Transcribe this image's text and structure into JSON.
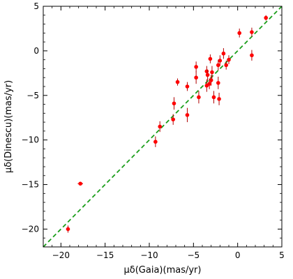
{
  "chart_data": {
    "type": "scatter",
    "title": "",
    "xlabel": "μδ(Gaia)(mas/yr)",
    "ylabel": "μδ(Dinescu)(mas/yr)",
    "xlim": [
      -22,
      5
    ],
    "ylim": [
      -22,
      5
    ],
    "xticks": [
      -20,
      -15,
      -10,
      -5,
      0,
      5
    ],
    "yticks": [
      -20,
      -15,
      -10,
      -5,
      0,
      5
    ],
    "xtick_labels": [
      "−20",
      "−15",
      "−10",
      "−5",
      "0",
      "5"
    ],
    "ytick_labels": [
      "−20",
      "−15",
      "−10",
      "−5",
      "0",
      "5"
    ],
    "grid": false,
    "marker_color": "#ff0000",
    "errorbar_color": "#b00000",
    "reference_line": {
      "style": "dashed",
      "color": "#1a9e1a",
      "from": [
        -22,
        -22
      ],
      "to": [
        5,
        5
      ]
    },
    "points": [
      {
        "x": 3.2,
        "y": 3.7,
        "xerr": 0.2,
        "yerr": 0.3
      },
      {
        "x": 1.6,
        "y": 2.1,
        "xerr": 0.2,
        "yerr": 0.5
      },
      {
        "x": 0.2,
        "y": 2.0,
        "xerr": 0.2,
        "yerr": 0.5
      },
      {
        "x": 1.6,
        "y": -0.5,
        "xerr": 0.2,
        "yerr": 0.6
      },
      {
        "x": -1.6,
        "y": -0.3,
        "xerr": 0.2,
        "yerr": 0.6
      },
      {
        "x": -1.3,
        "y": -1.6,
        "xerr": 0.2,
        "yerr": 0.5
      },
      {
        "x": -1.0,
        "y": -1.0,
        "xerr": 0.2,
        "yerr": 0.5
      },
      {
        "x": -2.0,
        "y": -1.1,
        "xerr": 0.2,
        "yerr": 0.6
      },
      {
        "x": -2.2,
        "y": -1.6,
        "xerr": 0.2,
        "yerr": 0.6
      },
      {
        "x": -3.1,
        "y": -0.9,
        "xerr": 0.2,
        "yerr": 0.5
      },
      {
        "x": -2.9,
        "y": -2.4,
        "xerr": 0.2,
        "yerr": 0.7
      },
      {
        "x": -3.5,
        "y": -2.3,
        "xerr": 0.2,
        "yerr": 0.6
      },
      {
        "x": -3.4,
        "y": -2.7,
        "xerr": 0.2,
        "yerr": 0.6
      },
      {
        "x": -3.0,
        "y": -3.3,
        "xerr": 0.2,
        "yerr": 0.6
      },
      {
        "x": -3.2,
        "y": -3.7,
        "xerr": 0.2,
        "yerr": 0.6
      },
      {
        "x": -3.5,
        "y": -3.9,
        "xerr": 0.2,
        "yerr": 0.7
      },
      {
        "x": -2.2,
        "y": -3.6,
        "xerr": 0.2,
        "yerr": 0.7
      },
      {
        "x": -2.7,
        "y": -5.2,
        "xerr": 0.2,
        "yerr": 0.7
      },
      {
        "x": -2.1,
        "y": -5.4,
        "xerr": 0.2,
        "yerr": 0.7
      },
      {
        "x": -4.4,
        "y": -5.2,
        "xerr": 0.2,
        "yerr": 0.7
      },
      {
        "x": -4.7,
        "y": -3.0,
        "xerr": 0.2,
        "yerr": 0.7
      },
      {
        "x": -4.7,
        "y": -1.8,
        "xerr": 0.2,
        "yerr": 0.6
      },
      {
        "x": -5.7,
        "y": -4.0,
        "xerr": 0.2,
        "yerr": 0.5
      },
      {
        "x": -6.8,
        "y": -3.5,
        "xerr": 0.2,
        "yerr": 0.4
      },
      {
        "x": -7.2,
        "y": -5.9,
        "xerr": 0.2,
        "yerr": 0.7
      },
      {
        "x": -5.7,
        "y": -7.2,
        "xerr": 0.2,
        "yerr": 0.8
      },
      {
        "x": -7.3,
        "y": -7.7,
        "xerr": 0.2,
        "yerr": 0.6
      },
      {
        "x": -8.8,
        "y": -8.5,
        "xerr": 0.2,
        "yerr": 0.6
      },
      {
        "x": -9.3,
        "y": -10.2,
        "xerr": 0.2,
        "yerr": 0.6
      },
      {
        "x": -17.8,
        "y": -14.9,
        "xerr": 0.3,
        "yerr": 0.2
      },
      {
        "x": -19.2,
        "y": -20.0,
        "xerr": 0.2,
        "yerr": 0.4
      }
    ]
  }
}
